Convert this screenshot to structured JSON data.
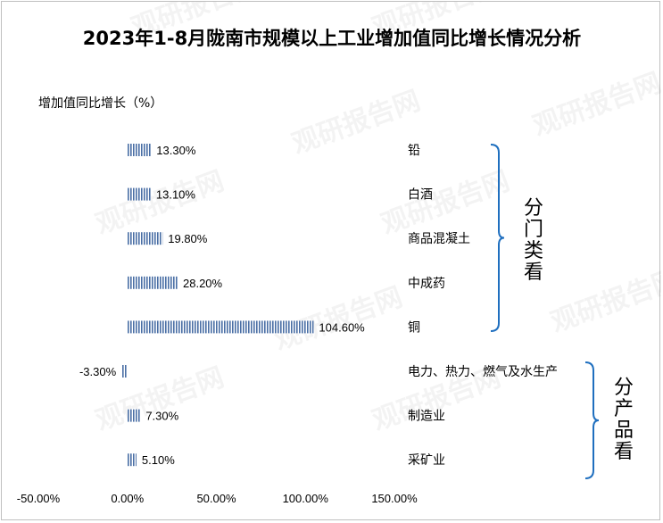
{
  "chart_data": {
    "type": "bar",
    "orientation": "horizontal",
    "title": "2023年1-8月陇南市规模以上工业增加值同比增长情况分析",
    "ylabel": "增加值同比增长（%）",
    "xlim": [
      -50,
      150
    ],
    "x_ticks": [
      "-50.00%",
      "0.00%",
      "50.00%",
      "100.00%",
      "150.00%"
    ],
    "categories": [
      "铅",
      "白酒",
      "商品混凝土",
      "中成药",
      "铜",
      "电力、热力、燃气及水生产",
      "制造业",
      "采矿业"
    ],
    "values": [
      13.3,
      13.1,
      19.8,
      28.2,
      104.6,
      -3.3,
      7.3,
      5.1
    ],
    "value_labels": [
      "13.30%",
      "13.10%",
      "19.80%",
      "28.20%",
      "104.60%",
      "-3.30%",
      "7.30%",
      "5.10%"
    ],
    "bar_color": "#4a6fa5",
    "bar_pattern": "vertical-stripes",
    "grid": false,
    "legend": "none",
    "groups": [
      {
        "label": "分门类看",
        "categories": [
          "铅",
          "白酒",
          "商品混凝土",
          "中成药",
          "铜"
        ]
      },
      {
        "label": "分产品看",
        "categories": [
          "电力、热力、燃气及水生产",
          "制造业",
          "采矿业"
        ]
      }
    ],
    "bracket_color": "#1f6fbf",
    "watermark": "观研报告网"
  }
}
